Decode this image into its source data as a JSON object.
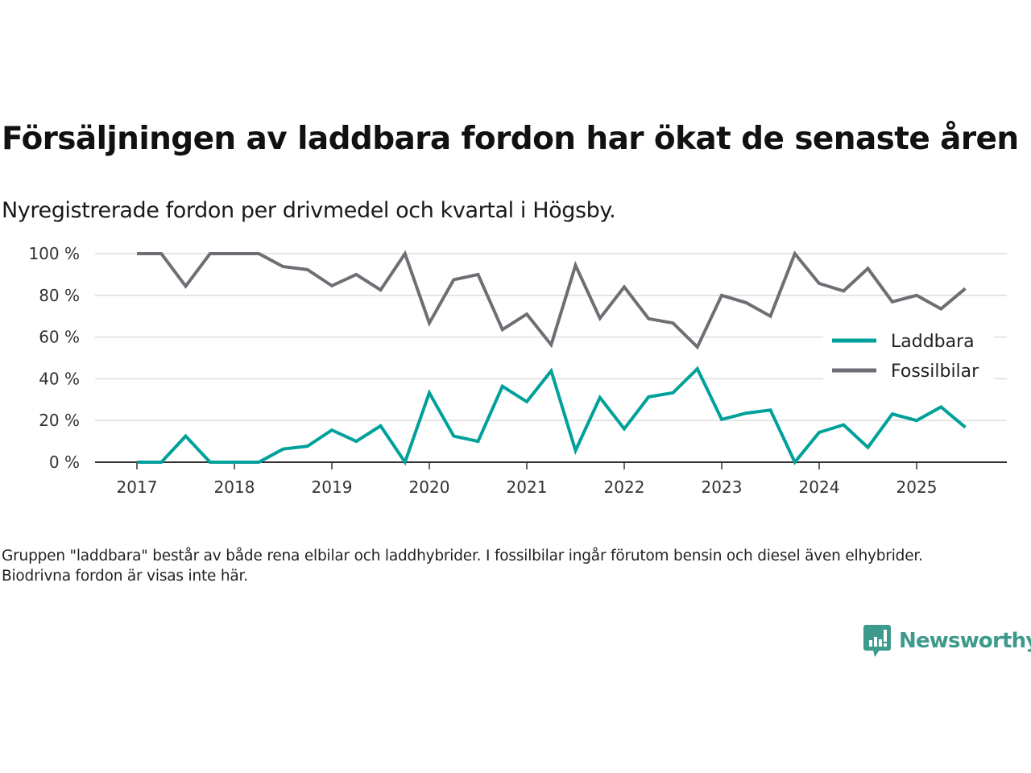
{
  "title": "Försäljningen av laddbara fordon har ökat de senaste åren",
  "subtitle": "Nyregistrerade fordon per drivmedel och kvartal i Högsby.",
  "footnote": "Gruppen \"laddbara\" består av både rena elbilar och laddhybrider. I fossilbilar ingår förutom bensin och diesel även elhybrider. Biodrivna fordon är visas inte här.",
  "logo": {
    "text": "Newsworthy",
    "icon": "newsworthy-chart-bubble-icon",
    "color": "#3d9a8c"
  },
  "chart_data": {
    "type": "line",
    "title": "Försäljningen av laddbara fordon har ökat de senaste åren",
    "subtitle": "Nyregistrerade fordon per drivmedel och kvartal i Högsby.",
    "xlabel": "",
    "ylabel": "",
    "ylim": [
      0,
      100
    ],
    "y_ticks": [
      0,
      20,
      40,
      60,
      80,
      100
    ],
    "y_tick_labels": [
      "0 %",
      "20 %",
      "40 %",
      "60 %",
      "80 %",
      "100 %"
    ],
    "x_ticks": [
      "2017",
      "2018",
      "2019",
      "2020",
      "2021",
      "2022",
      "2023",
      "2024",
      "2025"
    ],
    "grid": "horizontal",
    "legend_position": "right",
    "x": [
      "2017Q1",
      "2017Q2",
      "2017Q3",
      "2017Q4",
      "2018Q1",
      "2018Q2",
      "2018Q3",
      "2018Q4",
      "2019Q1",
      "2019Q2",
      "2019Q3",
      "2019Q4",
      "2020Q1",
      "2020Q2",
      "2020Q3",
      "2020Q4",
      "2021Q1",
      "2021Q2",
      "2021Q3",
      "2021Q4",
      "2022Q1",
      "2022Q2",
      "2022Q3",
      "2022Q4",
      "2023Q1",
      "2023Q2",
      "2023Q3",
      "2023Q4",
      "2024Q1",
      "2024Q2",
      "2024Q3",
      "2024Q4",
      "2025Q1",
      "2025Q2",
      "2025Q3"
    ],
    "series": [
      {
        "name": "Laddbara",
        "color": "#00a19a",
        "values": [
          0,
          0,
          12.5,
          0,
          0,
          0,
          6.3,
          7.7,
          15.4,
          10,
          17.4,
          0,
          33.3,
          12.5,
          10,
          36.4,
          29,
          43.8,
          5.6,
          31,
          16,
          31.3,
          33.3,
          44.8,
          20.5,
          23.5,
          25,
          0,
          14.3,
          17.9,
          7.1,
          23.1,
          20,
          26.5,
          16.7
        ]
      },
      {
        "name": "Fossilbilar",
        "color": "#6f6e74",
        "values": [
          100,
          100,
          84.4,
          100,
          100,
          100,
          93.8,
          92.3,
          84.6,
          90,
          82.6,
          100,
          66.7,
          87.5,
          90,
          63.6,
          71,
          56.3,
          94.4,
          69,
          84,
          68.8,
          66.7,
          55.2,
          80,
          76.5,
          70,
          100,
          85.7,
          82.1,
          92.9,
          76.9,
          80,
          73.5,
          83.3
        ]
      }
    ]
  }
}
